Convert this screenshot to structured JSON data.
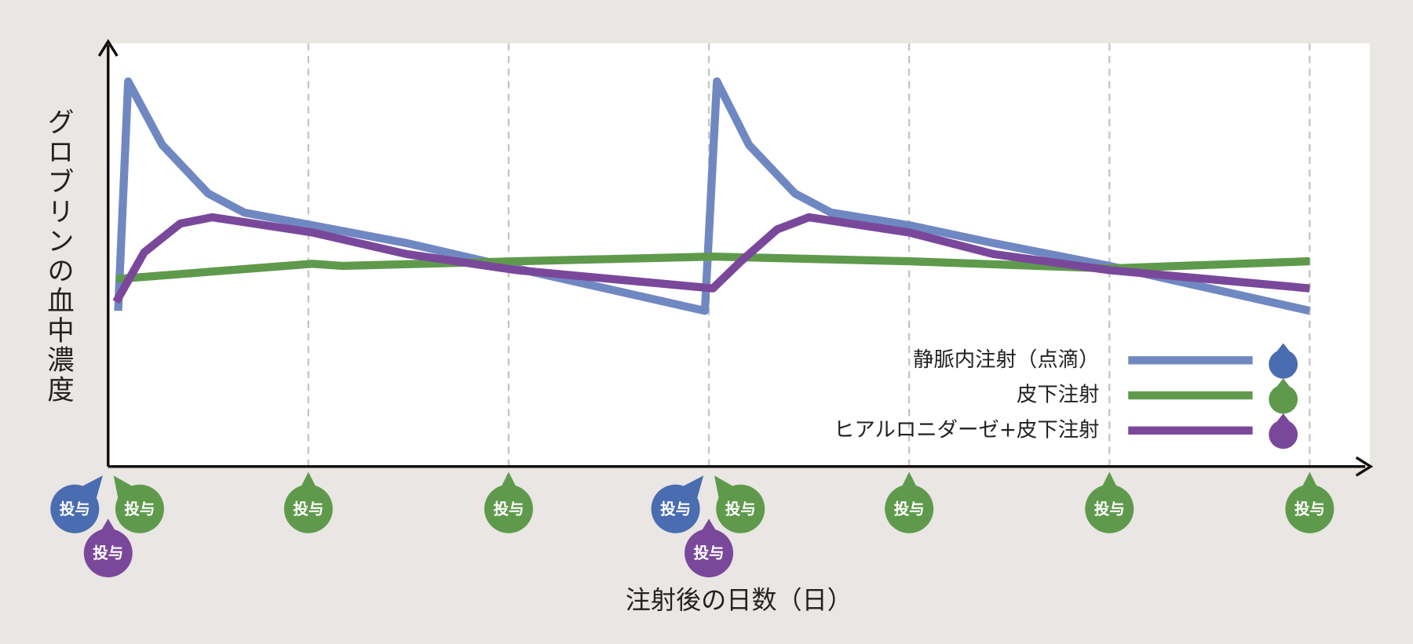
{
  "chart_data": {
    "type": "line",
    "y_label": "グロブリンの血中濃度",
    "x_label": "注射後の日数（日）",
    "dose_label": "投与",
    "xlim": [
      0,
      6.3
    ],
    "ylim": [
      0,
      100
    ],
    "xticks": [
      1,
      2,
      3,
      4,
      5,
      6
    ],
    "series": [
      {
        "name": "静脈内注射（点滴）",
        "color": "#7088c2",
        "marker_color": "#4a6cb0",
        "x": [
          0.05,
          0.1,
          0.27,
          0.5,
          0.68,
          1.02,
          1.49,
          2.04,
          2.98,
          3.04,
          3.2,
          3.43,
          3.61,
          4.0,
          4.42,
          5.0,
          6.0
        ],
        "values": [
          36.8,
          91,
          76,
          64.5,
          60,
          57,
          52.8,
          46.8,
          36.8,
          91,
          76,
          64.5,
          60,
          57,
          52.8,
          47.4,
          36.8
        ],
        "doses": [
          0,
          3
        ]
      },
      {
        "name": "皮下注射",
        "color": "#5f9a4c",
        "marker_color": "#5f9a4c",
        "x": [
          0.04,
          1.02,
          1.17,
          2.04,
          3.02,
          4.0,
          5.0,
          6.0
        ],
        "values": [
          44.3,
          47.9,
          47.4,
          48.5,
          49.6,
          48.5,
          46.8,
          48.5
        ],
        "doses": [
          0,
          1,
          2,
          3,
          4,
          5,
          6
        ]
      },
      {
        "name": "ヒアルロニダーゼ+皮下注射",
        "color": "#7a489b",
        "marker_color": "#7a489b",
        "x": [
          0.04,
          0.18,
          0.36,
          0.52,
          1.02,
          1.49,
          2.04,
          3.02,
          3.16,
          3.34,
          3.5,
          4.0,
          4.42,
          5.0,
          6.0
        ],
        "values": [
          38.9,
          50.6,
          57.4,
          58.9,
          55.3,
          50.2,
          46.4,
          42.1,
          48.5,
          56,
          58.9,
          55.3,
          50.2,
          46.4,
          42.1
        ],
        "doses": [
          0,
          3
        ]
      }
    ]
  }
}
